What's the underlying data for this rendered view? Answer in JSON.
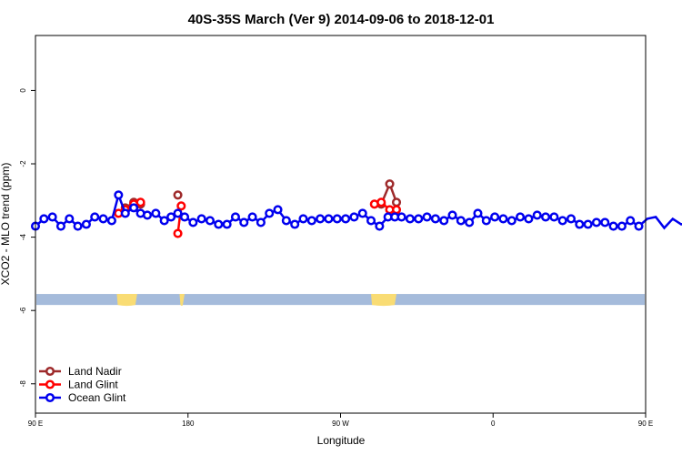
{
  "chart_data": {
    "type": "line",
    "title": "40S-35S March (Ver 9)   2014-09-06 to 2018-12-01",
    "xlabel": "Longitude",
    "ylabel": "XCO2 - MLO trend (ppm)",
    "x_range": [
      90,
      450
    ],
    "ylim": [
      -8.8,
      1.5
    ],
    "x_ticks": [
      {
        "value": 90,
        "label": "90 E"
      },
      {
        "value": 180,
        "label": "180"
      },
      {
        "value": 270,
        "label": "90 W"
      },
      {
        "value": 360,
        "label": "0"
      },
      {
        "value": 450,
        "label": "90 E"
      },
      {
        "value": 540,
        "label": "180"
      }
    ],
    "y_ticks": [
      {
        "value": 0,
        "label": "0"
      },
      {
        "value": -2,
        "label": "-2"
      },
      {
        "value": -4,
        "label": "-4"
      },
      {
        "value": -6,
        "label": "-6"
      },
      {
        "value": -8,
        "label": "-8"
      }
    ],
    "grid": false,
    "legend_position": "bottom-left",
    "map_band": {
      "ocean_color": "#a5bbdb",
      "land_color": "#f9dc74",
      "y_top": -5.55,
      "y_bottom": -5.85
    },
    "series": [
      {
        "name": "Land Nadir",
        "color": "#9e2a2b",
        "segments": [
          {
            "x": [
              143,
              148,
              152
            ],
            "y": [
              -3.2,
              -3.05,
              -3.1
            ]
          },
          {
            "x": [
              174
            ],
            "y": [
              -2.85
            ]
          },
          {
            "x": [
              294,
              299,
              303
            ],
            "y": [
              -3.1,
              -2.55,
              -3.05
            ]
          },
          {
            "x": [
              503,
              508,
              512
            ],
            "y": [
              -3.2,
              -3.05,
              -3.1
            ]
          },
          {
            "x": [
              534
            ],
            "y": [
              -2.85
            ]
          }
        ]
      },
      {
        "name": "Land Glint",
        "color": "#ff0000",
        "segments": [
          {
            "x": [
              139,
              143,
              148,
              152
            ],
            "y": [
              -3.35,
              -3.25,
              -3.1,
              -3.05
            ]
          },
          {
            "x": [
              174,
              176
            ],
            "y": [
              -3.9,
              -3.15
            ]
          },
          {
            "x": [
              290,
              294,
              299,
              303
            ],
            "y": [
              -3.1,
              -3.05,
              -3.25,
              -3.25
            ]
          },
          {
            "x": [
              499,
              503,
              508,
              512
            ],
            "y": [
              -3.35,
              -3.25,
              -3.1,
              -3.05
            ]
          },
          {
            "x": [
              534,
              536
            ],
            "y": [
              -3.9,
              -3.15
            ]
          }
        ]
      },
      {
        "name": "Ocean Glint",
        "color": "#0000ee",
        "segments": [
          {
            "x": [
              90,
              95,
              100,
              105,
              110,
              115,
              120,
              125,
              130,
              135,
              139,
              143,
              148,
              152,
              156,
              161,
              166,
              170,
              174,
              178,
              183,
              188,
              193,
              198,
              203,
              208,
              213,
              218,
              223,
              228,
              233,
              238,
              243,
              248,
              253,
              258,
              263,
              268,
              273,
              278,
              283,
              288,
              293,
              298,
              302,
              306,
              311,
              316,
              321,
              326,
              331,
              336,
              341,
              346,
              351,
              356,
              361,
              366,
              371,
              376,
              381,
              386,
              391,
              396,
              401,
              406,
              411,
              416,
              421,
              426,
              431,
              436,
              441,
              446,
              451,
              456,
              461,
              466,
              471,
              476,
              481,
              486,
              491,
              496,
              499,
              503,
              507,
              512,
              516,
              521,
              526,
              531,
              536
            ],
            "y": [
              -3.7,
              -3.5,
              -3.45,
              -3.7,
              -3.5,
              -3.7,
              -3.65,
              -3.45,
              -3.5,
              -3.55,
              -2.85,
              -3.35,
              -3.2,
              -3.35,
              -3.4,
              -3.35,
              -3.55,
              -3.45,
              -3.35,
              -3.45,
              -3.6,
              -3.5,
              -3.55,
              -3.65,
              -3.65,
              -3.45,
              -3.6,
              -3.45,
              -3.6,
              -3.35,
              -3.25,
              -3.55,
              -3.65,
              -3.5,
              -3.55,
              -3.5,
              -3.5,
              -3.5,
              -3.5,
              -3.45,
              -3.35,
              -3.55,
              -3.7,
              -3.45,
              -3.45,
              -3.45,
              -3.5,
              -3.5,
              -3.45,
              -3.5,
              -3.55,
              -3.4,
              -3.55,
              -3.6,
              -3.35,
              -3.55,
              -3.45,
              -3.5,
              -3.55,
              -3.45,
              -3.5,
              -3.4,
              -3.45,
              -3.45,
              -3.55,
              -3.5,
              -3.65,
              -3.65,
              -3.6,
              -3.6,
              -3.7,
              -3.7,
              -3.55,
              -3.7,
              -3.5,
              -3.45,
              -3.75,
              -3.5,
              -3.65,
              -3.6,
              -3.45,
              -3.5,
              -3.55,
              -3.35,
              -2.85,
              -3.35,
              -3.2,
              -3.35,
              -3.35,
              -3.4,
              -3.5,
              -3.45,
              -3.35
            ]
          }
        ]
      }
    ]
  }
}
